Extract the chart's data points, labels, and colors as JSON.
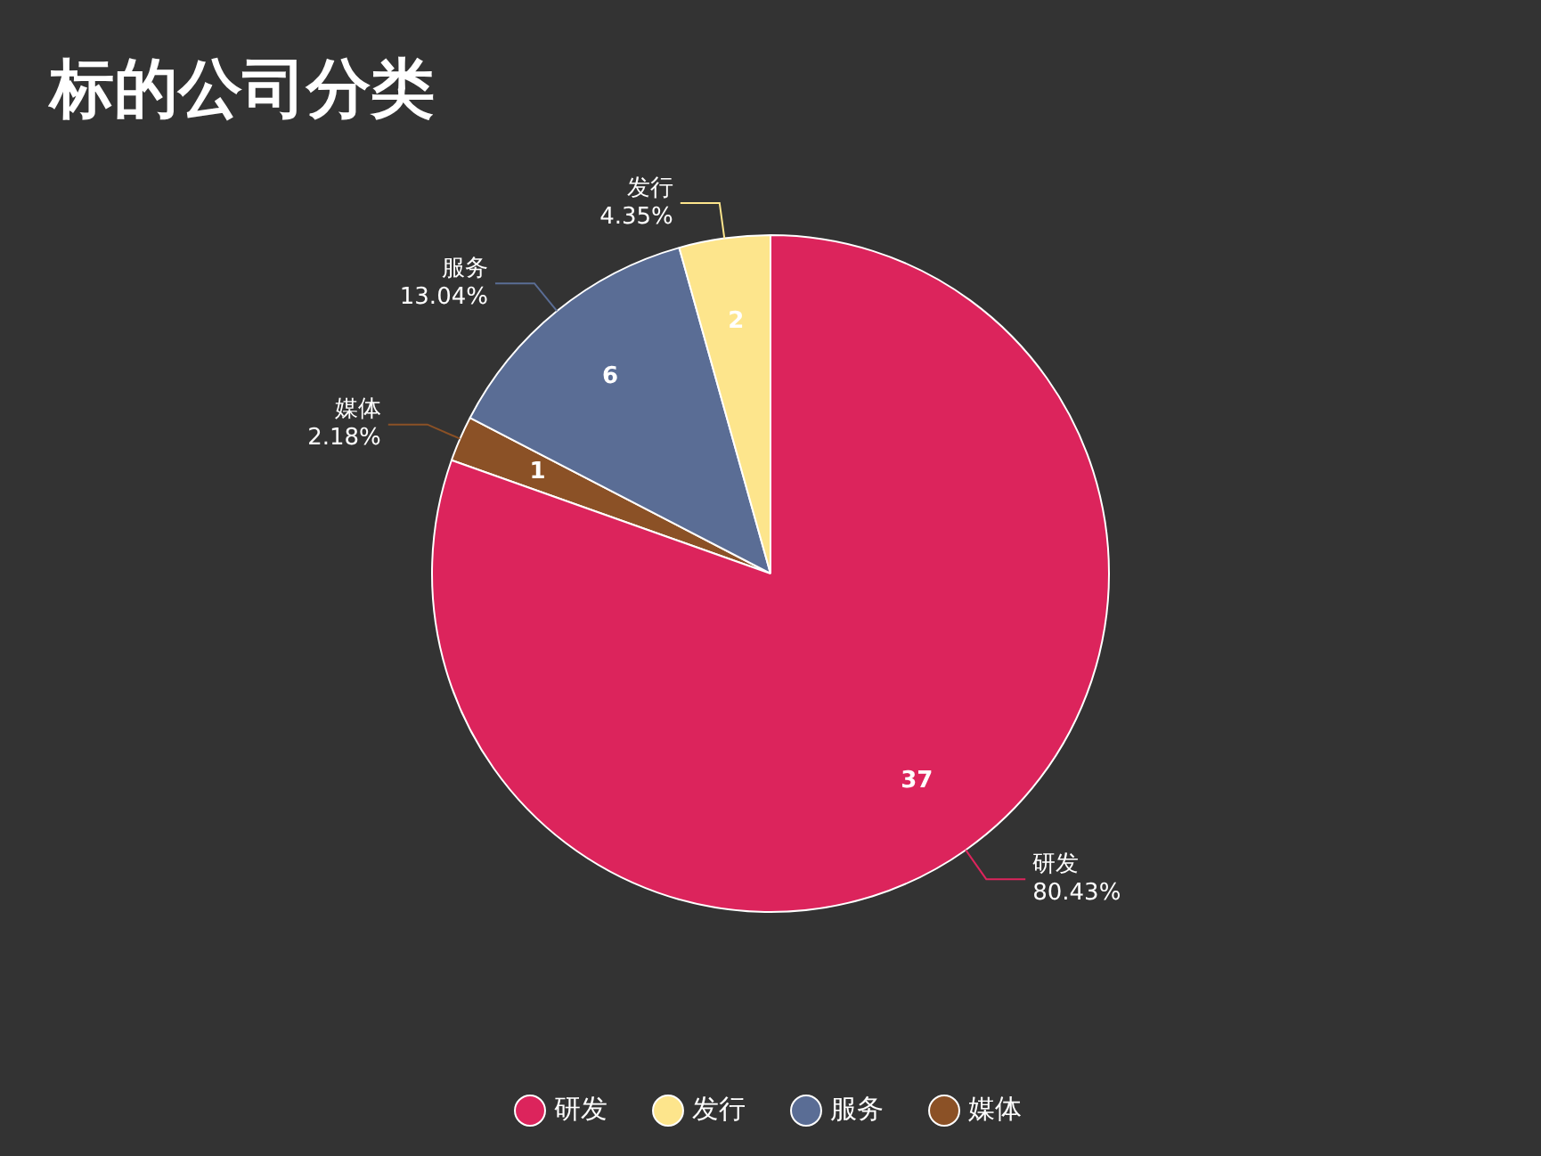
{
  "chart_data": {
    "type": "pie",
    "title": "标的公司分类",
    "categories": [
      "研发",
      "发行",
      "服务",
      "媒体"
    ],
    "values": [
      37,
      2,
      6,
      1
    ],
    "colors": [
      "#dc245c",
      "#fde58c",
      "#5a6d95",
      "#8b5126"
    ],
    "data_labels": true,
    "annotations": [
      {
        "text": "80.43%",
        "x": "研发"
      },
      {
        "text": "4.35%",
        "x": "发行"
      },
      {
        "text": "13.04%",
        "x": "服务"
      },
      {
        "text": "2.18%",
        "x": "媒体"
      }
    ],
    "legend": "bottom"
  }
}
